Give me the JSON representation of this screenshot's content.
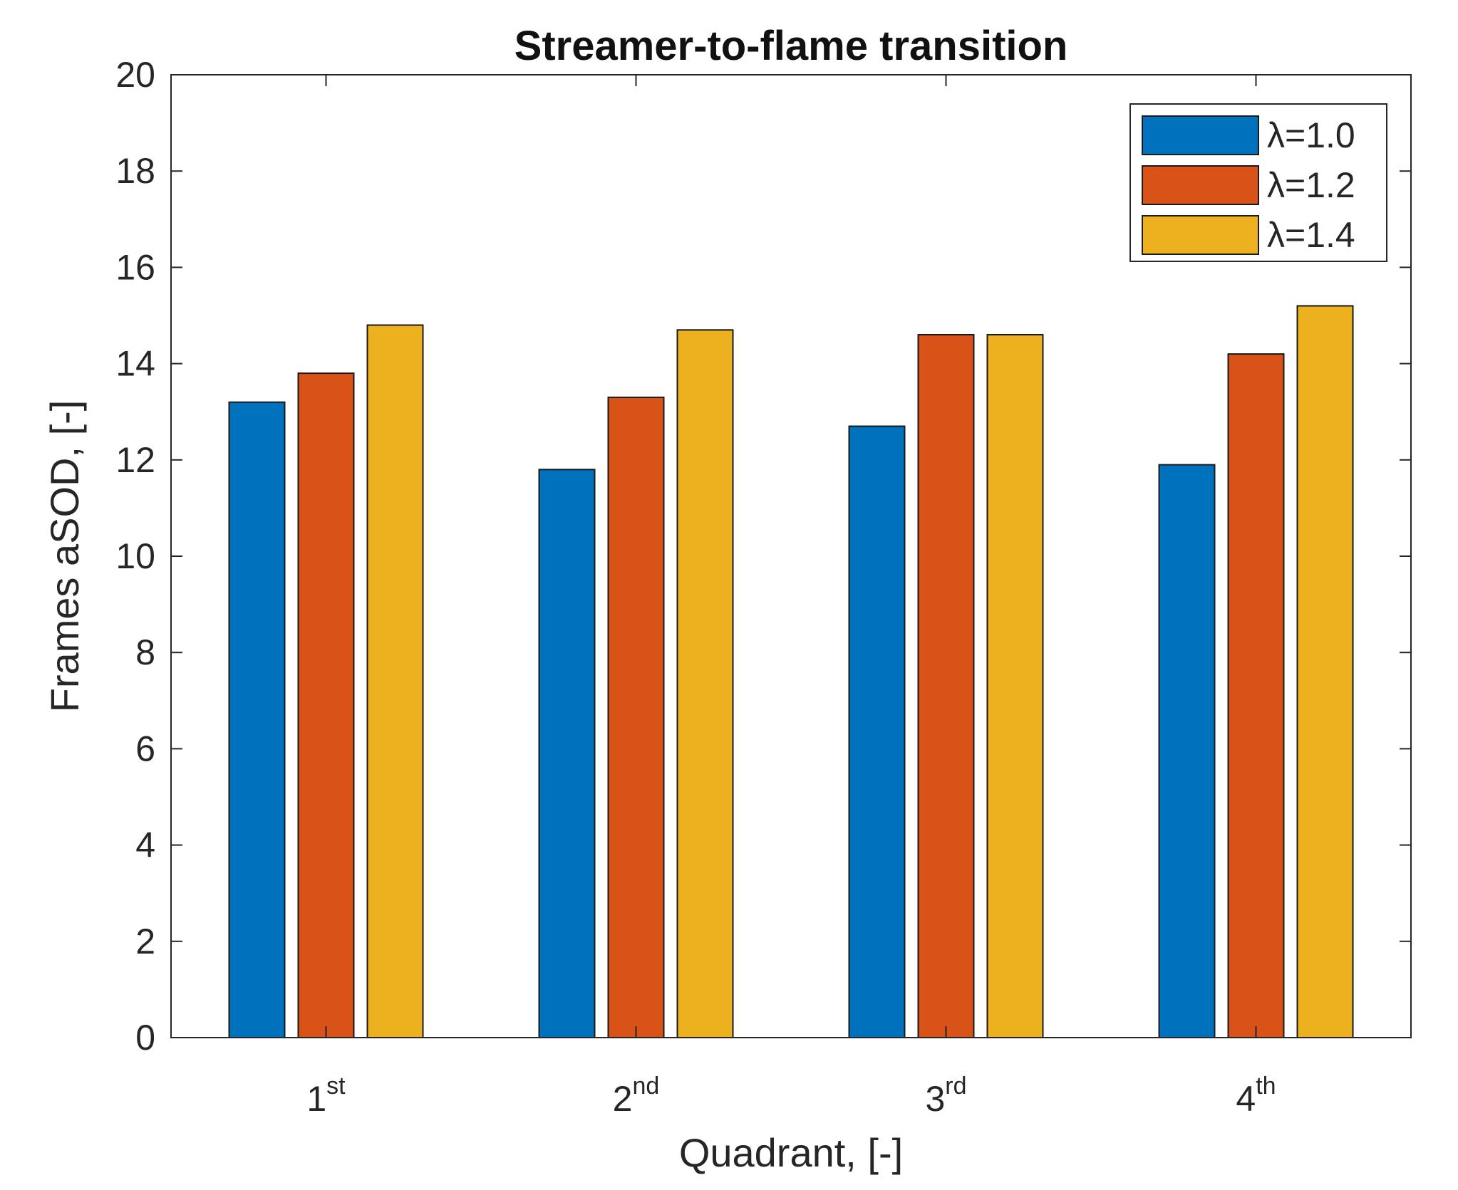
{
  "chart_data": {
    "type": "bar",
    "title": "Streamer-to-flame transition",
    "xlabel": "Quadrant, [-]",
    "ylabel": "Frames aSOD, [-]",
    "categories": [
      {
        "base": "1",
        "sup": "st"
      },
      {
        "base": "2",
        "sup": "nd"
      },
      {
        "base": "3",
        "sup": "rd"
      },
      {
        "base": "4",
        "sup": "th"
      }
    ],
    "ylim": [
      0,
      20
    ],
    "yticks": [
      0,
      2,
      4,
      6,
      8,
      10,
      12,
      14,
      16,
      18,
      20
    ],
    "grid": false,
    "legend_position": "top-right",
    "series": [
      {
        "name": "λ=1.0",
        "color": "#0072BD",
        "values": [
          13.2,
          11.8,
          12.7,
          11.9
        ]
      },
      {
        "name": "λ=1.2",
        "color": "#D95319",
        "values": [
          13.8,
          13.3,
          14.6,
          14.2
        ]
      },
      {
        "name": "λ=1.4",
        "color": "#EDB120",
        "values": [
          14.8,
          14.7,
          14.6,
          15.2
        ]
      }
    ]
  }
}
